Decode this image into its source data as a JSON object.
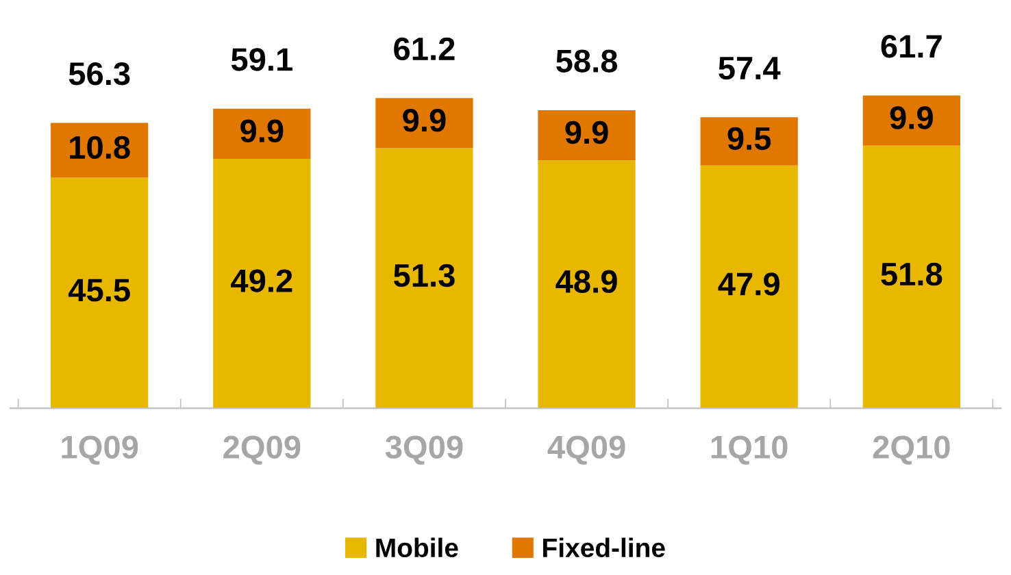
{
  "chart_data": {
    "type": "bar",
    "stacked": true,
    "categories": [
      "1Q09",
      "2Q09",
      "3Q09",
      "4Q09",
      "1Q10",
      "2Q10"
    ],
    "series": [
      {
        "name": "Mobile",
        "color": "#e8b800",
        "values": [
          45.5,
          49.2,
          51.3,
          48.9,
          47.9,
          51.8
        ]
      },
      {
        "name": "Fixed-line",
        "color": "#e07800",
        "values": [
          10.8,
          9.9,
          9.9,
          9.9,
          9.5,
          9.9
        ]
      }
    ],
    "data_labels": true,
    "totals": [
      "56.3",
      "59.1",
      "61.2",
      "58.8",
      "57.4",
      "61.7"
    ],
    "legend": "bottom",
    "grid": false
  }
}
